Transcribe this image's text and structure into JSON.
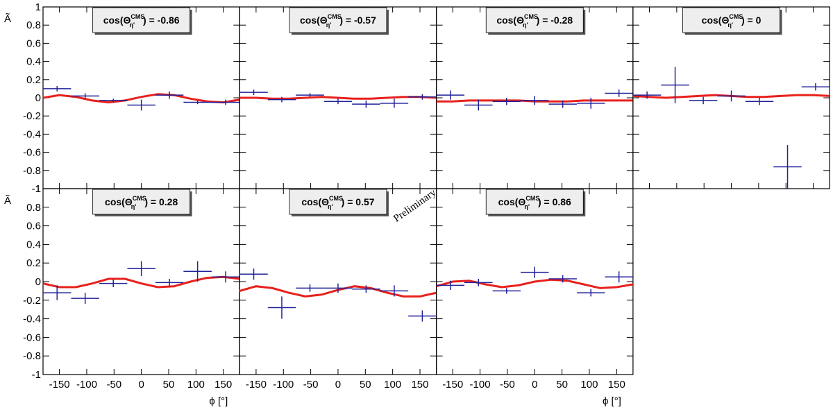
{
  "watermark": "Preliminary",
  "chart_data": [
    {
      "type": "scatter",
      "title": {
        "prefix": "cos(Θ",
        "sup": "CMS",
        "sub": "η'",
        "suffix": ") = -0.86"
      },
      "ylabel": "Ã",
      "x": [
        -154.3,
        -102.9,
        -51.4,
        0,
        51.4,
        102.9,
        154.3
      ],
      "values": [
        0.1,
        0.02,
        -0.03,
        -0.08,
        0.03,
        -0.05,
        -0.05
      ],
      "errors": [
        0.03,
        0.03,
        0.02,
        0.06,
        0.04,
        0.02,
        0.03
      ],
      "xerr": 25.7,
      "color": "#22229a",
      "fit": {
        "color": "#e8201c",
        "x": [
          -180,
          -150,
          -120,
          -90,
          -60,
          -30,
          0,
          30,
          60,
          90,
          120,
          150,
          180
        ],
        "values": [
          0.0,
          0.03,
          0.01,
          -0.03,
          -0.05,
          -0.03,
          0.01,
          0.04,
          0.03,
          -0.01,
          -0.04,
          -0.05,
          -0.02
        ]
      },
      "xlim": [
        -180,
        180
      ],
      "ylim": [
        -1,
        1
      ],
      "xticks": [
        -150,
        -100,
        -50,
        0,
        50,
        100,
        150
      ],
      "yticks": [
        -1,
        -0.8,
        -0.6,
        -0.4,
        -0.2,
        0,
        0.2,
        0.4,
        0.6,
        0.8,
        1
      ]
    },
    {
      "type": "scatter",
      "title": {
        "prefix": "cos(Θ",
        "sup": "CMS",
        "sub": "η'",
        "suffix": ") = -0.57"
      },
      "x": [
        -154.3,
        -102.9,
        -51.4,
        0,
        51.4,
        102.9,
        154.3
      ],
      "values": [
        0.06,
        -0.02,
        0.03,
        -0.04,
        -0.07,
        -0.06,
        0.01
      ],
      "errors": [
        0.03,
        0.03,
        0.02,
        0.03,
        0.04,
        0.05,
        0.03
      ],
      "xerr": 25.7,
      "color": "#22229a",
      "fit": {
        "color": "#e8201c",
        "x": [
          -180,
          -150,
          -120,
          -90,
          -60,
          -30,
          0,
          30,
          60,
          90,
          120,
          150,
          180
        ],
        "values": [
          0.0,
          0.0,
          -0.01,
          -0.01,
          0.0,
          0.01,
          0.0,
          -0.01,
          -0.01,
          0.0,
          0.01,
          0.01,
          0.0
        ]
      },
      "xlim": [
        -180,
        180
      ],
      "ylim": [
        -1,
        1
      ],
      "xticks": [
        -150,
        -100,
        -50,
        0,
        50,
        100,
        150
      ],
      "yticks": [
        -1,
        -0.8,
        -0.6,
        -0.4,
        -0.2,
        0,
        0.2,
        0.4,
        0.6,
        0.8,
        1
      ]
    },
    {
      "type": "scatter",
      "title": {
        "prefix": "cos(Θ",
        "sup": "CMS",
        "sub": "η'",
        "suffix": ") = -0.28"
      },
      "x": [
        -154.3,
        -102.9,
        -51.4,
        0,
        51.4,
        102.9,
        154.3
      ],
      "values": [
        0.03,
        -0.08,
        -0.04,
        -0.03,
        -0.07,
        -0.06,
        0.05
      ],
      "errors": [
        0.05,
        0.06,
        0.04,
        0.05,
        0.04,
        0.06,
        0.04
      ],
      "xerr": 25.7,
      "color": "#22229a",
      "fit": {
        "color": "#e8201c",
        "x": [
          -180,
          -150,
          -120,
          -90,
          -60,
          -30,
          0,
          30,
          60,
          90,
          120,
          150,
          180
        ],
        "values": [
          -0.04,
          -0.04,
          -0.03,
          -0.03,
          -0.03,
          -0.03,
          -0.04,
          -0.04,
          -0.04,
          -0.03,
          -0.03,
          -0.03,
          -0.03
        ]
      },
      "xlim": [
        -180,
        180
      ],
      "ylim": [
        -1,
        1
      ],
      "xticks": [
        -150,
        -100,
        -50,
        0,
        50,
        100,
        150
      ],
      "yticks": [
        -1,
        -0.8,
        -0.6,
        -0.4,
        -0.2,
        0,
        0.2,
        0.4,
        0.6,
        0.8,
        1
      ]
    },
    {
      "type": "scatter",
      "title": {
        "prefix": "cos(Θ",
        "sup": "CMS",
        "sub": "η'",
        "suffix": ") = 0"
      },
      "x": [
        -154.3,
        -102.9,
        -51.4,
        0,
        51.4,
        102.9,
        154.3
      ],
      "values": [
        0.03,
        0.14,
        -0.03,
        0.02,
        -0.04,
        -0.76,
        0.12
      ],
      "errors": [
        0.04,
        0.2,
        0.04,
        0.06,
        0.04,
        0.24,
        0.04
      ],
      "xerr": 25.7,
      "color": "#22229a",
      "fit": {
        "color": "#e8201c",
        "x": [
          -180,
          -150,
          -120,
          -90,
          -60,
          -30,
          0,
          30,
          60,
          90,
          120,
          150,
          180
        ],
        "values": [
          0.02,
          0.01,
          0.0,
          0.01,
          0.02,
          0.03,
          0.02,
          0.01,
          0.01,
          0.02,
          0.03,
          0.03,
          0.02
        ]
      },
      "xlim": [
        -180,
        180
      ],
      "ylim": [
        -1,
        1
      ],
      "xticks": [
        -150,
        -100,
        -50,
        0,
        50,
        100,
        150
      ],
      "yticks": [
        -1,
        -0.8,
        -0.6,
        -0.4,
        -0.2,
        0,
        0.2,
        0.4,
        0.6,
        0.8,
        1
      ]
    },
    {
      "type": "scatter",
      "title": {
        "prefix": "cos(Θ",
        "sup": "CMS",
        "sub": "η'",
        "suffix": ") = 0.28"
      },
      "ylabel": "Ã",
      "xlabel": "ϕ [°]",
      "x": [
        -154.3,
        -102.9,
        -51.4,
        0,
        51.4,
        102.9,
        154.3
      ],
      "values": [
        -0.12,
        -0.18,
        -0.02,
        0.14,
        -0.01,
        0.11,
        0.05
      ],
      "errors": [
        0.08,
        0.06,
        0.04,
        0.08,
        0.04,
        0.11,
        0.06
      ],
      "xerr": 25.7,
      "color": "#22229a",
      "fit": {
        "color": "#e8201c",
        "x": [
          -180,
          -150,
          -120,
          -90,
          -60,
          -30,
          0,
          30,
          60,
          90,
          120,
          150,
          180
        ],
        "values": [
          -0.02,
          -0.06,
          -0.06,
          -0.02,
          0.03,
          0.03,
          -0.02,
          -0.06,
          -0.05,
          0.0,
          0.04,
          0.05,
          0.03
        ]
      },
      "xlim": [
        -180,
        180
      ],
      "ylim": [
        -1,
        1
      ],
      "xticks": [
        -150,
        -100,
        -50,
        0,
        50,
        100,
        150
      ],
      "yticks": [
        -1,
        -0.8,
        -0.6,
        -0.4,
        -0.2,
        0,
        0.2,
        0.4,
        0.6,
        0.8,
        1
      ]
    },
    {
      "type": "scatter",
      "title": {
        "prefix": "cos(Θ",
        "sup": "CMS",
        "sub": "η'",
        "suffix": ") = 0.57"
      },
      "x": [
        -154.3,
        -102.9,
        -51.4,
        0,
        51.4,
        102.9,
        154.3
      ],
      "values": [
        0.08,
        -0.28,
        -0.07,
        -0.07,
        -0.08,
        -0.1,
        -0.37
      ],
      "errors": [
        0.06,
        0.12,
        0.04,
        0.05,
        0.04,
        0.06,
        0.06
      ],
      "xerr": 25.7,
      "color": "#22229a",
      "fit": {
        "color": "#e8201c",
        "x": [
          -180,
          -150,
          -120,
          -90,
          -60,
          -30,
          0,
          30,
          60,
          90,
          120,
          150,
          180
        ],
        "values": [
          -0.1,
          -0.05,
          -0.07,
          -0.12,
          -0.16,
          -0.14,
          -0.09,
          -0.05,
          -0.07,
          -0.12,
          -0.16,
          -0.16,
          -0.12
        ]
      },
      "xlim": [
        -180,
        180
      ],
      "ylim": [
        -1,
        1
      ],
      "xticks": [
        -150,
        -100,
        -50,
        0,
        50,
        100,
        150
      ],
      "yticks": [
        -1,
        -0.8,
        -0.6,
        -0.4,
        -0.2,
        0,
        0.2,
        0.4,
        0.6,
        0.8,
        1
      ]
    },
    {
      "type": "scatter",
      "title": {
        "prefix": "cos(Θ",
        "sup": "CMS",
        "sub": "η'",
        "suffix": ") = 0.86"
      },
      "xlabel": "ϕ [°]",
      "x": [
        -154.3,
        -102.9,
        -51.4,
        0,
        51.4,
        102.9,
        154.3
      ],
      "values": [
        -0.04,
        -0.01,
        -0.1,
        0.1,
        0.03,
        -0.12,
        0.05
      ],
      "errors": [
        0.05,
        0.04,
        0.03,
        0.06,
        0.04,
        0.04,
        0.06
      ],
      "xerr": 25.7,
      "color": "#22229a",
      "fit": {
        "color": "#e8201c",
        "x": [
          -180,
          -150,
          -120,
          -90,
          -60,
          -30,
          0,
          30,
          60,
          90,
          120,
          150,
          180
        ],
        "values": [
          -0.05,
          0.0,
          0.01,
          -0.03,
          -0.06,
          -0.04,
          0.0,
          0.02,
          0.01,
          -0.03,
          -0.07,
          -0.06,
          -0.03
        ]
      },
      "xlim": [
        -180,
        180
      ],
      "ylim": [
        -1,
        1
      ],
      "xticks": [
        -150,
        -100,
        -50,
        0,
        50,
        100,
        150
      ],
      "yticks": [
        -1,
        -0.8,
        -0.6,
        -0.4,
        -0.2,
        0,
        0.2,
        0.4,
        0.6,
        0.8,
        1
      ]
    }
  ]
}
